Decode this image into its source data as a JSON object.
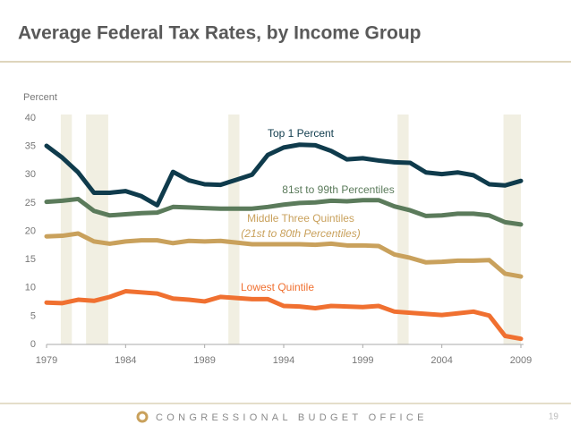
{
  "title": "Average Federal Tax Rates, by Income Group",
  "footer": {
    "organization": "CONGRESSIONAL BUDGET OFFICE",
    "page": "19"
  },
  "chart_data": {
    "type": "line",
    "y_axis_label": "Percent",
    "x": [
      1979,
      1980,
      1981,
      1982,
      1983,
      1984,
      1985,
      1986,
      1987,
      1988,
      1989,
      1990,
      1991,
      1992,
      1993,
      1994,
      1995,
      1996,
      1997,
      1998,
      1999,
      2000,
      2001,
      2002,
      2003,
      2004,
      2005,
      2006,
      2007,
      2008,
      2009
    ],
    "xlim": [
      1979,
      2009
    ],
    "xticks": [
      1979,
      1984,
      1989,
      1994,
      1999,
      2004,
      2009
    ],
    "ylim": [
      0,
      40
    ],
    "yticks": [
      0,
      5,
      10,
      15,
      20,
      25,
      30,
      35,
      40
    ],
    "shaded_ranges": [
      [
        1979.9,
        1980.6
      ],
      [
        1981.5,
        1982.9
      ],
      [
        1990.5,
        1991.2
      ],
      [
        2001.2,
        2001.9
      ],
      [
        2007.9,
        2009
      ]
    ],
    "shade_color": "#f1efe2",
    "series": [
      {
        "name": "Top 1 Percent",
        "color": "#0f3b4c",
        "values": [
          35.1,
          33.0,
          30.4,
          26.8,
          26.8,
          27.1,
          26.2,
          24.6,
          30.5,
          29.0,
          28.3,
          28.2,
          29.1,
          30.0,
          33.5,
          34.8,
          35.3,
          35.2,
          34.2,
          32.7,
          32.9,
          32.5,
          32.2,
          32.1,
          30.4,
          30.1,
          30.4,
          29.9,
          28.3,
          28.1,
          28.9
        ]
      },
      {
        "name": "81st to 99th Percentiles",
        "color": "#5b7b5b",
        "values": [
          25.2,
          25.4,
          25.7,
          23.6,
          22.8,
          23.0,
          23.2,
          23.3,
          24.3,
          24.2,
          24.1,
          24.0,
          24.0,
          24.0,
          24.3,
          24.7,
          25.0,
          25.1,
          25.4,
          25.3,
          25.5,
          25.5,
          24.4,
          23.7,
          22.7,
          22.8,
          23.1,
          23.1,
          22.8,
          21.6,
          21.2
        ]
      },
      {
        "name": "Middle Three Quintiles",
        "subname": "(21st to 80th Percentiles)",
        "color": "#c9a15c",
        "values": [
          19.1,
          19.2,
          19.6,
          18.2,
          17.8,
          18.2,
          18.4,
          18.4,
          17.9,
          18.3,
          18.2,
          18.3,
          18.0,
          17.7,
          17.7,
          17.7,
          17.7,
          17.6,
          17.8,
          17.5,
          17.5,
          17.4,
          15.9,
          15.3,
          14.5,
          14.6,
          14.8,
          14.8,
          14.9,
          12.5,
          12.0
        ]
      },
      {
        "name": "Lowest Quintile",
        "color": "#f07030",
        "values": [
          7.4,
          7.3,
          7.9,
          7.7,
          8.4,
          9.4,
          9.2,
          9.0,
          8.1,
          7.9,
          7.6,
          8.4,
          8.2,
          8.0,
          8.0,
          6.8,
          6.7,
          6.4,
          6.8,
          6.7,
          6.6,
          6.8,
          5.8,
          5.6,
          5.4,
          5.2,
          5.5,
          5.8,
          5.1,
          1.5,
          1.0
        ]
      }
    ]
  }
}
